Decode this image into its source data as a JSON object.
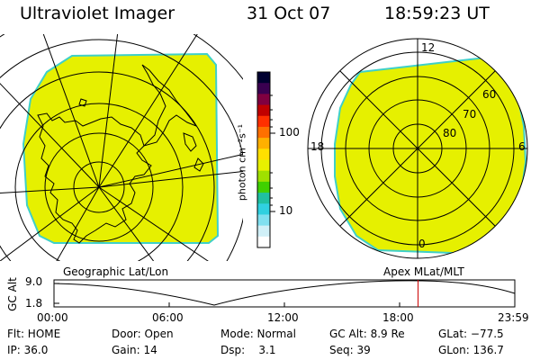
{
  "header": {
    "instrument": "Ultraviolet Imager",
    "date": "31 Oct 07",
    "time": "18:59:23 UT"
  },
  "colors": {
    "map_fill": "#e6f000",
    "map_edge": "#3fd0c8",
    "line": "#000000",
    "time_marker": "#cc0000"
  },
  "colorbar": {
    "unit": "photon cm⁻²s⁻¹",
    "ticks": [
      "100",
      "10"
    ],
    "colors": [
      "#000030",
      "#3a0050",
      "#800040",
      "#c00000",
      "#ff3000",
      "#ff7000",
      "#ffb000",
      "#ffe000",
      "#e8f000",
      "#a0e000",
      "#40d000",
      "#20c0a0",
      "#30d0e0",
      "#80e0f0",
      "#d0f0f8",
      "#ffffff"
    ]
  },
  "left_map": {
    "label": "Geographic Lat/Lon"
  },
  "right_map": {
    "label": "Apex MLat/MLT",
    "mlt_labels": {
      "top": "12",
      "left": "18",
      "right": "6",
      "bottom": "0"
    },
    "lat_labels": [
      "60",
      "70",
      "80"
    ]
  },
  "altitude_plot": {
    "ylabel": "GC Alt",
    "yticks": [
      "9.0",
      "1.8"
    ],
    "xticks": [
      "00:00",
      "06:00",
      "12:00",
      "18:00",
      "23:59"
    ],
    "current_time_fraction": 0.79
  },
  "status": {
    "row1": [
      {
        "label": "Flt: HOME"
      },
      {
        "label": "Door: Open"
      },
      {
        "label": "Mode: Normal"
      },
      {
        "label": "GC Alt: 8.9 Re"
      },
      {
        "label": "GLat: −77.5"
      }
    ],
    "row2": [
      {
        "label": "IP: 36.0"
      },
      {
        "label": "Gain: 14"
      },
      {
        "label": "Dsp:    3.1"
      },
      {
        "label": "Seq: 39"
      },
      {
        "label": "GLon: 136.7"
      }
    ]
  }
}
